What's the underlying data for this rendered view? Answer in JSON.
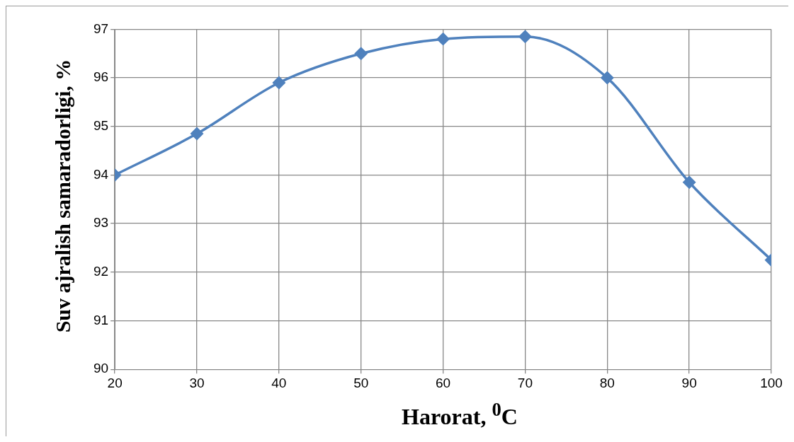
{
  "chart_data": {
    "type": "line",
    "xlabel": "Harorat, $^{0}$C",
    "ylabel": "Suv ajralish samaradorligi, %",
    "x": [
      20,
      30,
      40,
      50,
      60,
      70,
      80,
      90,
      100
    ],
    "series": [
      {
        "color": "#4f81bd",
        "values": [
          94,
          94.85,
          95.9,
          96.5,
          96.8,
          96.85,
          96,
          93.85,
          92.25
        ]
      }
    ],
    "xlim": [
      20,
      100
    ],
    "xticks": [
      20,
      30,
      40,
      50,
      60,
      70,
      80,
      90,
      100
    ],
    "ylim": [
      90,
      97
    ],
    "yticks": [
      90,
      91,
      92,
      93,
      94,
      95,
      96,
      97
    ],
    "grid": true,
    "legend": false,
    "marker": "diamond",
    "line_style": "solid"
  }
}
